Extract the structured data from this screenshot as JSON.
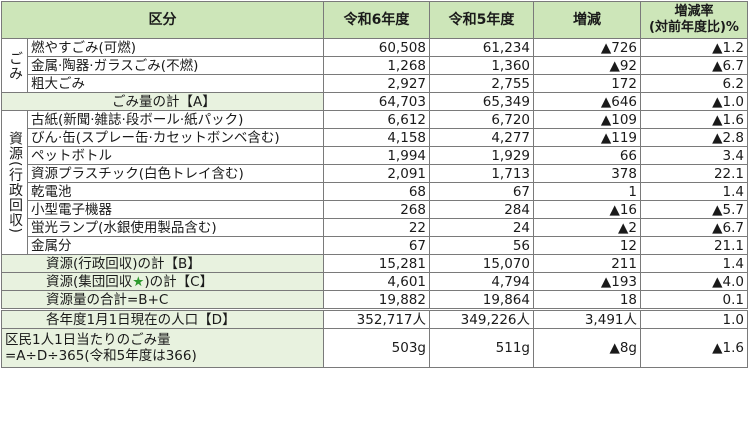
{
  "header": {
    "category": "区分",
    "r6": "令和6年度",
    "r5": "令和5年度",
    "diff": "増減",
    "rate_line1": "増減率",
    "rate_line2": "(対前年度比)%"
  },
  "groups": {
    "gomi_label": "ごみ",
    "shigen_label": "資源(行政回収)"
  },
  "rows": [
    {
      "label": "燃やすごみ(可燃)",
      "r6": "60,508",
      "r5": "61,234",
      "diff": "▲726",
      "rate": "▲1.2"
    },
    {
      "label": "金属·陶器·ガラスごみ(不燃)",
      "r6": "1,268",
      "r5": "1,360",
      "diff": "▲92",
      "rate": "▲6.7"
    },
    {
      "label": "粗大ごみ",
      "r6": "2,927",
      "r5": "2,755",
      "diff": "172",
      "rate": "6.2"
    },
    {
      "label": "ごみ量の計【A】",
      "r6": "64,703",
      "r5": "65,349",
      "diff": "▲646",
      "rate": "▲1.0"
    },
    {
      "label": "古紙(新聞·雑誌·段ボール·紙パック)",
      "r6": "6,612",
      "r5": "6,720",
      "diff": "▲109",
      "rate": "▲1.6"
    },
    {
      "label": "びん·缶(スプレー缶·カセットボンベ含む)",
      "r6": "4,158",
      "r5": "4,277",
      "diff": "▲119",
      "rate": "▲2.8"
    },
    {
      "label": "ペットボトル",
      "r6": "1,994",
      "r5": "1,929",
      "diff": "66",
      "rate": "3.4"
    },
    {
      "label": "資源プラスチック(白色トレイ含む)",
      "r6": "2,091",
      "r5": "1,713",
      "diff": "378",
      "rate": "22.1"
    },
    {
      "label": "乾電池",
      "r6": "68",
      "r5": "67",
      "diff": "1",
      "rate": "1.4"
    },
    {
      "label": "小型電子機器",
      "r6": "268",
      "r5": "284",
      "diff": "▲16",
      "rate": "▲5.7"
    },
    {
      "label": "蛍光ランプ(水銀使用製品含む)",
      "r6": "22",
      "r5": "24",
      "diff": "▲2",
      "rate": "▲6.7"
    },
    {
      "label": "金属分",
      "r6": "67",
      "r5": "56",
      "diff": "12",
      "rate": "21.1"
    },
    {
      "label": "資源(行政回収)の計【B】",
      "r6": "15,281",
      "r5": "15,070",
      "diff": "211",
      "rate": "1.4"
    },
    {
      "label_a": "資源(集団回収",
      "star": "★",
      "label_b": ")の計【C】",
      "r6": "4,601",
      "r5": "4,794",
      "diff": "▲193",
      "rate": "▲4.0"
    },
    {
      "label": "資源量の合計=B+C",
      "r6": "19,882",
      "r5": "19,864",
      "diff": "18",
      "rate": "0.1"
    },
    {
      "label": "各年度1月1日現在の人口【D】",
      "r6": "352,717人",
      "r5": "349,226人",
      "diff": "3,491人",
      "rate": "1.0"
    },
    {
      "label_line1": "区民1人1日当たりのごみ量",
      "label_line2": "=A÷D÷365(令和5年度は366)",
      "r6": "503g",
      "r5": "511g",
      "diff": "▲8g",
      "rate": "▲1.6"
    }
  ]
}
